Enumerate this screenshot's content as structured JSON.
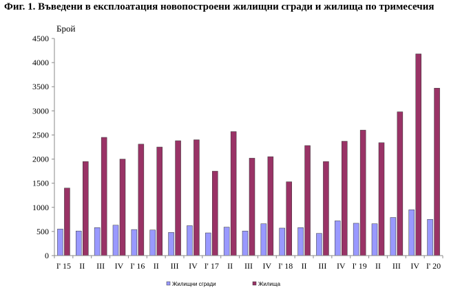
{
  "title": "Фиг. 1. Въведени в експлоатация новопостроени жилищни сгради и жилища по тримесечия",
  "chart_data": {
    "type": "bar",
    "title": "Фиг. 1. Въведени в експлоатация новопостроени жилищни сгради и жилища по тримесечия",
    "ylabel": "Брой",
    "xlabel": "",
    "ylim": [
      0,
      4500
    ],
    "yticks": [
      0,
      500,
      1000,
      1500,
      2000,
      2500,
      3000,
      3500,
      4000,
      4500
    ],
    "grid": false,
    "legend_position": "bottom",
    "categories": [
      "I' 15",
      "II",
      "III",
      "IV",
      "I' 16",
      "II",
      "III",
      "IV",
      "I' 17",
      "II",
      "III",
      "IV",
      "I' 18",
      "II",
      "III",
      "IV",
      "I' 19",
      "II",
      "III",
      "IV",
      "I' 20"
    ],
    "series": [
      {
        "name": "Жилищни  сгради",
        "color": "#9999ff",
        "values": [
          550,
          510,
          580,
          630,
          540,
          530,
          480,
          620,
          470,
          590,
          510,
          660,
          570,
          580,
          460,
          720,
          670,
          660,
          790,
          950,
          750
        ]
      },
      {
        "name": "Жилища",
        "color": "#993366",
        "values": [
          1400,
          1950,
          2450,
          2000,
          2310,
          2250,
          2380,
          2400,
          1750,
          2570,
          2020,
          2050,
          1530,
          2280,
          1950,
          2370,
          2600,
          2340,
          2980,
          4180,
          3470
        ]
      }
    ]
  }
}
